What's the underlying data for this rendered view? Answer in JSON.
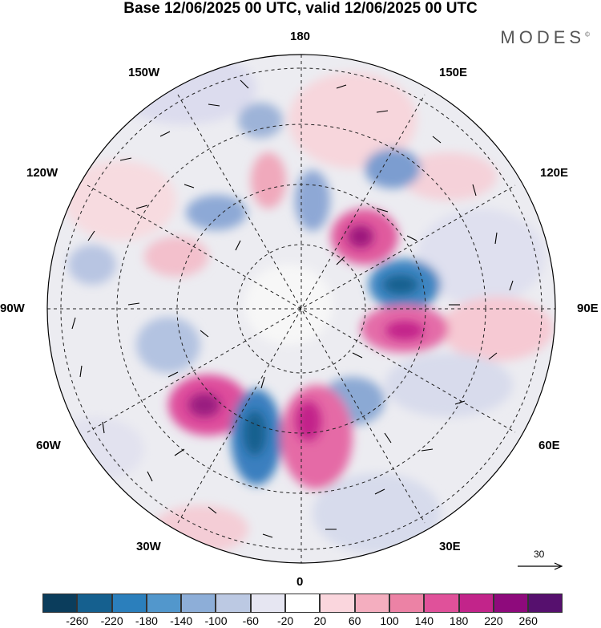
{
  "title": "Base 12/06/2025 00 UTC, valid 12/06/2025 00 UTC",
  "brand": "MODES",
  "brand_mark": "©",
  "longitude_labels": {
    "top": "180",
    "bottom": "0",
    "left": "90W",
    "right": "90E",
    "upper_left_1": "150W",
    "upper_left_2": "120W",
    "upper_right_1": "150E",
    "upper_right_2": "120E",
    "lower_left_1": "60W",
    "lower_left_2": "30W",
    "lower_right_1": "60E",
    "lower_right_2": "30E"
  },
  "reference_vector": "30",
  "colorbar": {
    "colors": [
      "#0b3d5c",
      "#15608f",
      "#2b7fbc",
      "#5297cc",
      "#8daed8",
      "#bcc9e3",
      "#e6e6f2",
      "#ffffff",
      "#fad6dd",
      "#f4aebf",
      "#ec82a5",
      "#e0519a",
      "#c2248a",
      "#8e0a7c",
      "#56106e"
    ],
    "ticks": [
      "-260",
      "-220",
      "-180",
      "-140",
      "-100",
      "-60",
      "-20",
      "20",
      "60",
      "100",
      "140",
      "180",
      "220",
      "260"
    ]
  }
}
